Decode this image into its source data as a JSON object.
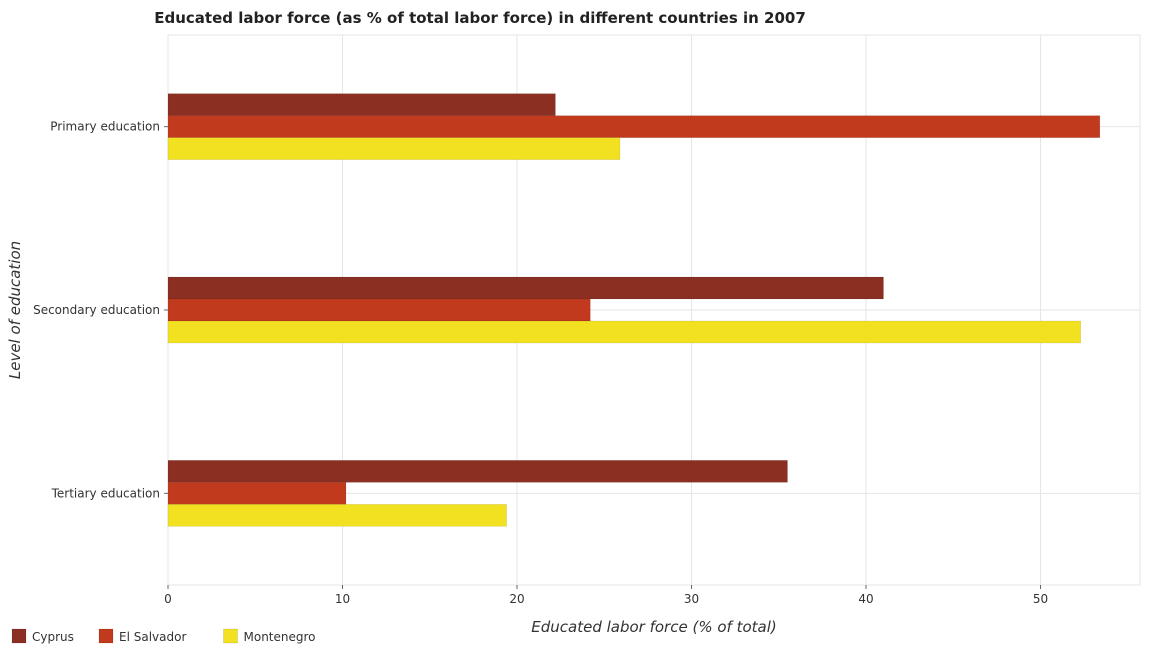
{
  "chart_data": {
    "type": "bar",
    "orientation": "horizontal",
    "title": "Educated labor force (as % of total labor force) in different countries in 2007",
    "xlabel": "Educated labor force (% of total)",
    "ylabel": "Level of education",
    "categories": [
      "Primary education",
      "Secondary education",
      "Tertiary education"
    ],
    "series": [
      {
        "name": "Cyprus",
        "color": "#8b2f23",
        "values": [
          22.2,
          41.0,
          35.5
        ]
      },
      {
        "name": "El Salvador",
        "color": "#c13a1e",
        "values": [
          53.4,
          24.2,
          10.2
        ]
      },
      {
        "name": "Montenegro",
        "color": "#f2e120",
        "values": [
          25.9,
          52.3,
          19.4
        ]
      }
    ],
    "xlim": [
      0,
      55.7
    ],
    "xticks": [
      0,
      10,
      20,
      30,
      40,
      50
    ],
    "grid": true,
    "legend_position": "bottom-left"
  }
}
